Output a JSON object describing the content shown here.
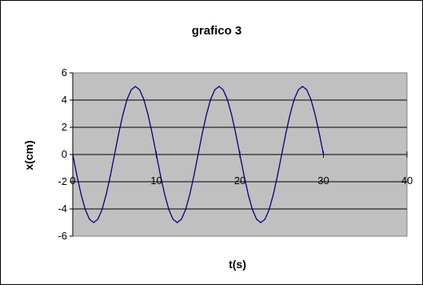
{
  "chart_data": {
    "type": "line",
    "title": "grafico 3",
    "xlabel": "t(s)",
    "ylabel": "x(cm)",
    "xlim": [
      0,
      40
    ],
    "ylim": [
      -6,
      6
    ],
    "x_ticks": [
      "0",
      "10",
      "20",
      "30",
      "40"
    ],
    "y_ticks": [
      "6",
      "4",
      "2",
      "0",
      "-2",
      "-4",
      "-6"
    ],
    "grid": "horizontal",
    "legend": "none",
    "plot_background": "#c0c0c0",
    "series": [
      {
        "color": "#000080",
        "x": [
          0,
          0.5,
          1,
          1.5,
          2,
          2.5,
          3,
          3.5,
          4,
          4.5,
          5,
          5.5,
          6,
          6.5,
          7,
          7.5,
          8,
          8.5,
          9,
          9.5,
          10,
          10.5,
          11,
          11.5,
          12,
          12.5,
          13,
          13.5,
          14,
          14.5,
          15,
          15.5,
          16,
          16.5,
          17,
          17.5,
          18,
          18.5,
          19,
          19.5,
          20,
          20.5,
          21,
          21.5,
          22,
          22.5,
          23,
          23.5,
          24,
          24.5,
          25,
          25.5,
          26,
          26.5,
          27,
          27.5,
          28,
          28.5,
          29,
          29.5,
          30
        ],
        "y": [
          0,
          -1.55,
          -2.94,
          -4.05,
          -4.76,
          -5,
          -4.76,
          -4.05,
          -2.94,
          -1.55,
          0,
          1.55,
          2.94,
          4.05,
          4.76,
          5,
          4.76,
          4.05,
          2.94,
          1.55,
          0,
          -1.55,
          -2.94,
          -4.05,
          -4.76,
          -5,
          -4.76,
          -4.05,
          -2.94,
          -1.55,
          0,
          1.55,
          2.94,
          4.05,
          4.76,
          5,
          4.76,
          4.05,
          2.94,
          1.55,
          0,
          -1.55,
          -2.94,
          -4.05,
          -4.76,
          -5,
          -4.76,
          -4.05,
          -2.94,
          -1.55,
          0,
          1.55,
          2.94,
          4.05,
          4.76,
          5,
          4.76,
          4.05,
          2.94,
          1.55,
          0
        ]
      }
    ]
  }
}
